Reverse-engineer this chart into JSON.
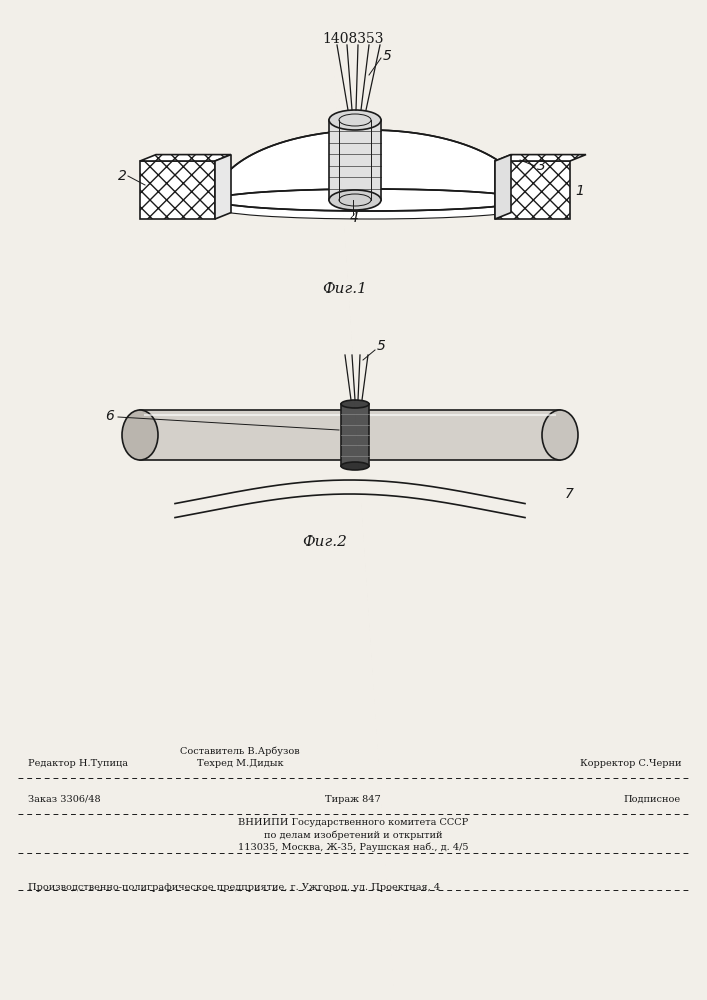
{
  "bg_color": "#f2efe9",
  "patent_number": "1408353",
  "fig1_caption": "Фиг.1",
  "fig2_caption": "Фиг.2",
  "footer_line1_left": "Редактор Н.Тупица",
  "footer_line1_center_top": "Составитель В.Арбузов",
  "footer_line1_center_bot": "Техред М.Дидык",
  "footer_line1_right": "Корректор С.Черни",
  "footer_line2_left": "Заказ 3306/48",
  "footer_line2_center": "Тираж 847",
  "footer_line2_right": "Подписное",
  "footer_line3": "ВНИИПИ Государственного комитета СССР",
  "footer_line4": "по делам изобретений и открытий",
  "footer_line5": "113035, Москва, Ж-35, Раушская наб., д. 4/5",
  "footer_line6": "Производственно-полиграфическое предприятие, г. Ужгород, ул. Проектная, 4"
}
